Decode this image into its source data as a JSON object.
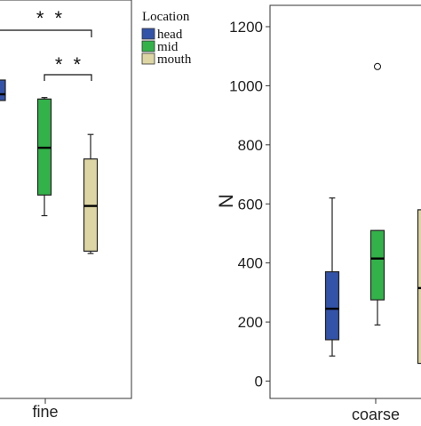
{
  "legend": {
    "title": "Location",
    "items": [
      {
        "label": "head",
        "color": "#3353a8"
      },
      {
        "label": "mid",
        "color": "#33b24a"
      },
      {
        "label": "mouth",
        "color": "#ddd6a4"
      }
    ]
  },
  "chart_data": [
    {
      "type": "box",
      "panel": "left",
      "categories": [
        "fine"
      ],
      "series": [
        {
          "name": "head",
          "color": "#3353a8",
          "whisker_low": null,
          "q1": null,
          "median": null,
          "q3": null,
          "whisker_high": null
        },
        {
          "name": "mid",
          "color": "#33b24a",
          "whisker_low": 560,
          "q1": 630,
          "median": 790,
          "q3": 955,
          "whisker_high": 960
        },
        {
          "name": "mouth",
          "color": "#ddd6a4",
          "whisker_low": 432,
          "q1": 440,
          "median": 593,
          "q3": 752,
          "whisker_high": 835
        }
      ],
      "annotations": [
        "* *",
        "* *"
      ]
    },
    {
      "type": "box",
      "panel": "right",
      "ylabel": "N",
      "yticks": [
        0,
        200,
        400,
        600,
        800,
        1000,
        1200
      ],
      "ylim": [
        -40,
        1250
      ],
      "categories": [
        "coarse"
      ],
      "series": [
        {
          "name": "head",
          "color": "#3353a8",
          "whisker_low": 85,
          "q1": 140,
          "median": 245,
          "q3": 370,
          "whisker_high": 620,
          "outliers": []
        },
        {
          "name": "mid",
          "color": "#33b24a",
          "whisker_low": 190,
          "q1": 275,
          "median": 415,
          "q3": 510,
          "whisker_high": 510,
          "outliers": [
            1065
          ]
        },
        {
          "name": "mouth",
          "color": "#ddd6a4",
          "whisker_low": null,
          "q1": 60,
          "median": 315,
          "q3": 580,
          "whisker_high": null,
          "outliers": []
        }
      ]
    }
  ]
}
